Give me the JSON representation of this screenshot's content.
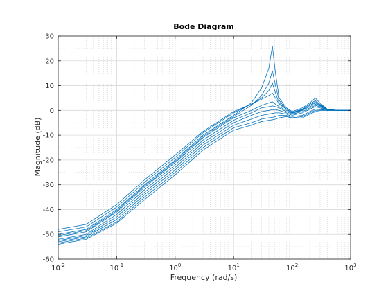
{
  "chart_data": {
    "type": "line",
    "title": "Bode Diagram",
    "xlabel": "Frequency  (rad/s)",
    "ylabel": "Magnitude (dB)",
    "xscale": "log",
    "xlim": [
      0.01,
      1000
    ],
    "ylim": [
      -60,
      30
    ],
    "grid": true,
    "x_ticks": [
      {
        "value": 0.01,
        "base": "10",
        "exp": "-2"
      },
      {
        "value": 0.1,
        "base": "10",
        "exp": "-1"
      },
      {
        "value": 1,
        "base": "10",
        "exp": "0"
      },
      {
        "value": 10,
        "base": "10",
        "exp": "1"
      },
      {
        "value": 100,
        "base": "10",
        "exp": "2"
      },
      {
        "value": 1000,
        "base": "10",
        "exp": "3"
      }
    ],
    "y_ticks": [
      -60,
      -50,
      -40,
      -30,
      -20,
      -10,
      0,
      10,
      20,
      30
    ],
    "line_color": "#0072bd",
    "series": [
      {
        "x": [
          0.01,
          0.03,
          0.1,
          0.3,
          1,
          3,
          10,
          20,
          30,
          40,
          46,
          52,
          60,
          80,
          100,
          150,
          200,
          250,
          300,
          400,
          600,
          1000
        ],
        "y": [
          -50,
          -48,
          -40,
          -30,
          -20,
          -10,
          -2,
          3,
          9,
          17,
          26,
          15,
          5,
          1,
          -0.5,
          1,
          3,
          5,
          3,
          0.5,
          0,
          0
        ]
      },
      {
        "x": [
          0.01,
          0.03,
          0.1,
          0.3,
          1,
          3,
          10,
          20,
          30,
          40,
          46,
          52,
          60,
          80,
          100,
          150,
          200,
          250,
          300,
          400,
          600,
          1000
        ],
        "y": [
          -50.5,
          -48.5,
          -40.5,
          -30.5,
          -20.5,
          -10.5,
          -2.5,
          2,
          6,
          11,
          16,
          10,
          4,
          0.5,
          -0.8,
          0.5,
          2.5,
          4,
          2.5,
          0.5,
          0,
          0
        ]
      },
      {
        "x": [
          0.01,
          0.03,
          0.1,
          0.3,
          1,
          3,
          10,
          20,
          30,
          40,
          46,
          52,
          60,
          80,
          100,
          150,
          200,
          250,
          300,
          400,
          600,
          1000
        ],
        "y": [
          -49,
          -47,
          -39,
          -29,
          -19,
          -9,
          -1,
          2.5,
          5,
          8,
          11,
          7,
          3,
          0.5,
          -0.8,
          0.3,
          2,
          3.5,
          2.2,
          0.4,
          0,
          0
        ]
      },
      {
        "x": [
          0.01,
          0.03,
          0.1,
          0.3,
          1,
          3,
          10,
          20,
          30,
          40,
          46,
          52,
          60,
          80,
          100,
          150,
          200,
          250,
          300,
          400,
          600,
          1000
        ],
        "y": [
          -48,
          -46,
          -38,
          -28,
          -18,
          -8.5,
          -0.5,
          2.5,
          4.5,
          6,
          7,
          5,
          2.5,
          0.5,
          -1,
          0.2,
          2,
          3,
          2,
          0.3,
          0,
          0
        ]
      },
      {
        "x": [
          0.01,
          0.03,
          0.1,
          0.3,
          1,
          3,
          10,
          20,
          30,
          40,
          46,
          52,
          60,
          80,
          100,
          150,
          200,
          250,
          300,
          400,
          600,
          1000
        ],
        "y": [
          -51,
          -49,
          -41,
          -31,
          -21,
          -11,
          -3,
          0,
          2,
          3,
          3.5,
          2.5,
          1.5,
          0,
          -1.2,
          0,
          1.5,
          2.5,
          1.8,
          0.3,
          0,
          0
        ]
      },
      {
        "x": [
          0.01,
          0.03,
          0.1,
          0.3,
          1,
          3,
          10,
          20,
          30,
          40,
          46,
          52,
          60,
          80,
          100,
          150,
          200,
          250,
          300,
          400,
          600,
          1000
        ],
        "y": [
          -52,
          -50,
          -42,
          -32,
          -22,
          -12,
          -4,
          -1,
          1,
          1.5,
          1.8,
          1.5,
          1,
          -0.5,
          -1.5,
          -0.5,
          1,
          2,
          1.5,
          0.2,
          0,
          0
        ]
      },
      {
        "x": [
          0.01,
          0.03,
          0.1,
          0.3,
          1,
          3,
          10,
          20,
          30,
          40,
          46,
          52,
          60,
          80,
          100,
          150,
          200,
          250,
          300,
          400,
          600,
          1000
        ],
        "y": [
          -52.5,
          -50.5,
          -43,
          -33,
          -23,
          -13,
          -5,
          -2,
          -0.5,
          0,
          0.3,
          0.3,
          0,
          -1,
          -2,
          -1,
          0.5,
          1.5,
          1,
          0.2,
          0,
          0
        ]
      },
      {
        "x": [
          0.01,
          0.03,
          0.1,
          0.3,
          1,
          3,
          10,
          20,
          30,
          40,
          46,
          52,
          60,
          80,
          100,
          150,
          200,
          250,
          300,
          400,
          600,
          1000
        ],
        "y": [
          -53,
          -51,
          -44,
          -34,
          -24,
          -14,
          -6,
          -3.5,
          -2,
          -1.5,
          -1.2,
          -1,
          -1,
          -1.5,
          -2.5,
          -2,
          -0.5,
          0.5,
          0.5,
          0,
          0,
          0
        ]
      },
      {
        "x": [
          0.01,
          0.03,
          0.1,
          0.3,
          1,
          3,
          10,
          20,
          30,
          40,
          46,
          52,
          60,
          80,
          100,
          150,
          200,
          250,
          300,
          400,
          600,
          1000
        ],
        "y": [
          -53.5,
          -51.5,
          -45,
          -35,
          -25,
          -15,
          -7,
          -5,
          -3.5,
          -3,
          -2.8,
          -2.5,
          -2,
          -2,
          -3,
          -2.5,
          -1,
          0,
          0.2,
          0,
          0,
          0
        ]
      },
      {
        "x": [
          0.01,
          0.03,
          0.1,
          0.3,
          1,
          3,
          10,
          20,
          30,
          40,
          46,
          52,
          60,
          80,
          100,
          150,
          200,
          250,
          300,
          400,
          600,
          1000
        ],
        "y": [
          -54,
          -52,
          -45.5,
          -36,
          -26,
          -16,
          -8,
          -6,
          -4.5,
          -4,
          -3.8,
          -3.5,
          -3,
          -2.5,
          -3.2,
          -3,
          -1.5,
          -0.5,
          0,
          0,
          0,
          0
        ]
      }
    ]
  }
}
